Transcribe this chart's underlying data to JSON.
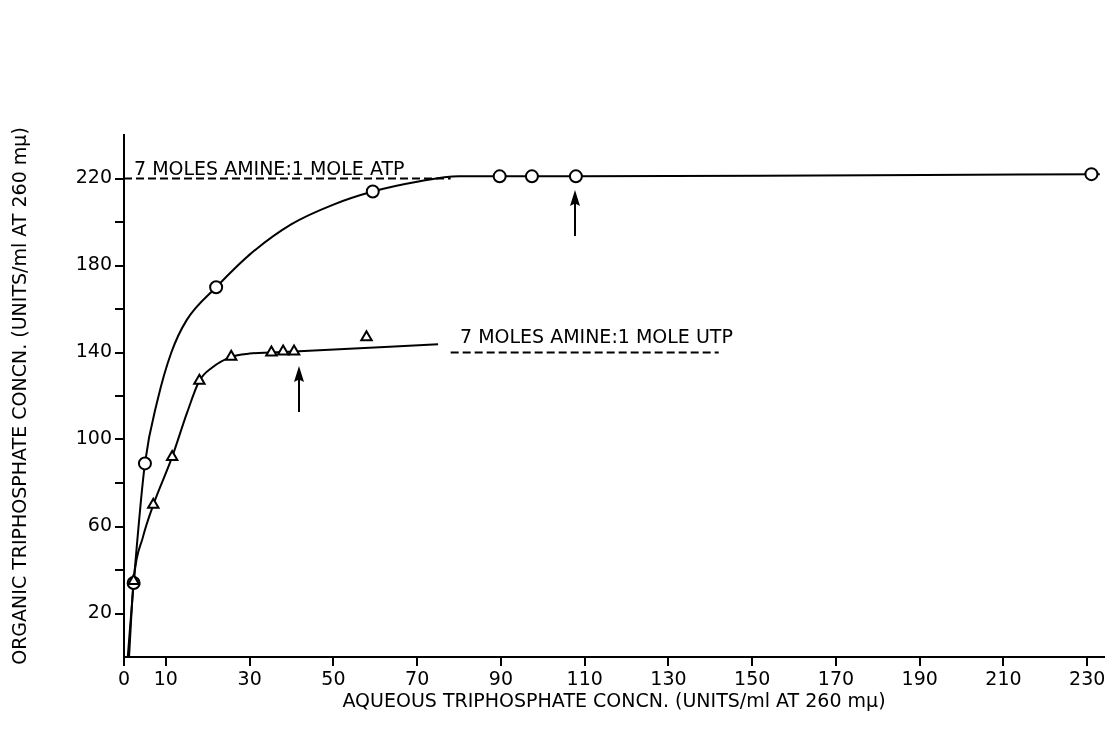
{
  "chart_data": {
    "type": "scatter",
    "xlabel": "AQUEOUS TRIPHOSPHATE CONCN. (UNITS/ml AT 260 mμ)",
    "ylabel": "ORGANIC TRIPHOSPHATE CONCN. (UNITS/ml AT 260 mμ)",
    "xlim": [
      0,
      234
    ],
    "xticks": [
      0,
      10,
      30,
      50,
      70,
      90,
      110,
      130,
      150,
      170,
      190,
      210,
      230
    ],
    "ylim": [
      0,
      240
    ],
    "yticks": [
      20,
      {
        "value": 40,
        "label": null
      },
      60,
      {
        "value": 80,
        "label": null
      },
      100,
      {
        "value": 120,
        "label": null
      },
      140,
      {
        "value": 160,
        "label": null
      },
      180,
      {
        "value": 200,
        "label": null
      },
      220
    ],
    "grid": false,
    "legend": false,
    "series": [
      {
        "marker": "circle",
        "color": "#000000",
        "x": [
          2.3,
          5,
          22,
          59.4,
          89.7,
          97.4,
          107.9,
          231
        ],
        "values": [
          34,
          89,
          170,
          214,
          221,
          221,
          221,
          222
        ]
      },
      {
        "marker": "triangle",
        "color": "#000000",
        "x": [
          2.3,
          7,
          11.5,
          18,
          25.6,
          35.2,
          38,
          40.6,
          57.9
        ],
        "values": [
          35,
          70,
          92,
          127,
          138,
          140,
          140.5,
          140.5,
          147
        ]
      },
      {
        "type": "line",
        "marker": "none",
        "color": "#000000",
        "x": [
          0.9,
          2.3,
          5,
          8,
          11.3,
          15,
          22,
          30,
          40,
          50,
          59.4,
          70,
          80,
          89.7,
          107.9,
          233
        ],
        "values": [
          0,
          34,
          89,
          118,
          140,
          155,
          170,
          185,
          199,
          208,
          214,
          218.5,
          221,
          221,
          221,
          222
        ]
      },
      {
        "type": "line",
        "marker": "none",
        "color": "#000000",
        "x": [
          1.2,
          2.3,
          4.5,
          7,
          11.5,
          15,
          18,
          21,
          25.6,
          30,
          35.2,
          40.6,
          75
        ],
        "values": [
          0,
          35,
          55,
          70,
          92,
          112,
          127,
          133,
          138,
          139.5,
          140,
          140.5,
          143.8
        ]
      },
      {
        "type": "line",
        "marker": "none",
        "line_style": "dashed",
        "color": "#000000",
        "x": [
          0,
          78
        ],
        "values": [
          220,
          220
        ]
      },
      {
        "type": "line",
        "marker": "none",
        "line_style": "dashed",
        "color": "#000000",
        "x": [
          78,
          142
        ],
        "values": [
          140,
          140
        ]
      }
    ],
    "annotations": [
      "7 MOLES AMINE:1 MOLE ATP",
      "7 MOLES AMINE:1 MOLE UTP"
    ]
  }
}
